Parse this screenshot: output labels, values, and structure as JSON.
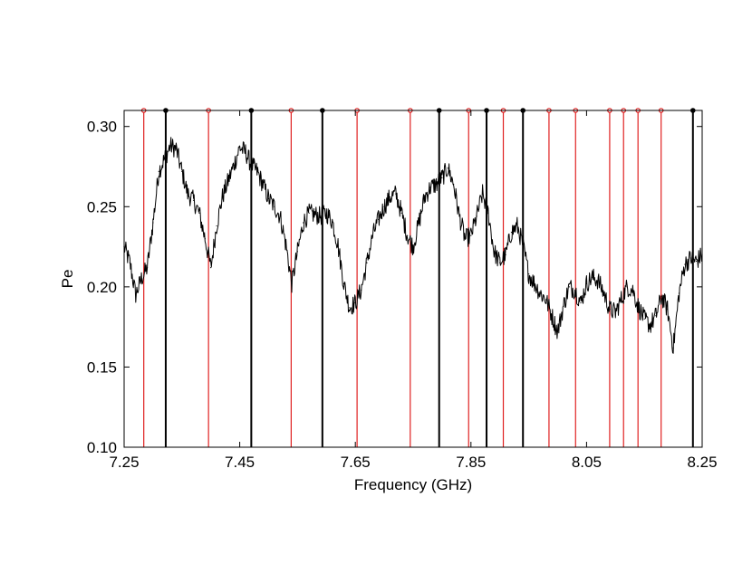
{
  "chart_data": {
    "type": "line",
    "title": "",
    "xlabel": "Frequency (GHz)",
    "ylabel": "Pe",
    "xlim": [
      7.25,
      8.25
    ],
    "ylim": [
      0.1,
      0.31
    ],
    "x_ticks": [
      "7.25",
      "7.45",
      "7.65",
      "7.85",
      "8.05",
      "8.25"
    ],
    "y_ticks": [
      "0.10",
      "0.15",
      "0.20",
      "0.25",
      "0.30"
    ],
    "grid": false,
    "series": [
      {
        "color": "#000000",
        "x": [
          7.25,
          7.26,
          7.27,
          7.28,
          7.29,
          7.3,
          7.31,
          7.32,
          7.33,
          7.34,
          7.35,
          7.36,
          7.37,
          7.38,
          7.39,
          7.4,
          7.41,
          7.42,
          7.43,
          7.44,
          7.45,
          7.46,
          7.47,
          7.48,
          7.49,
          7.5,
          7.51,
          7.52,
          7.53,
          7.54,
          7.55,
          7.56,
          7.57,
          7.58,
          7.59,
          7.6,
          7.61,
          7.62,
          7.63,
          7.64,
          7.65,
          7.66,
          7.67,
          7.68,
          7.69,
          7.7,
          7.71,
          7.72,
          7.73,
          7.74,
          7.75,
          7.76,
          7.77,
          7.78,
          7.79,
          7.8,
          7.81,
          7.82,
          7.83,
          7.84,
          7.85,
          7.86,
          7.87,
          7.88,
          7.89,
          7.9,
          7.91,
          7.92,
          7.93,
          7.94,
          7.95,
          7.96,
          7.97,
          7.98,
          7.99,
          8.0,
          8.01,
          8.02,
          8.03,
          8.04,
          8.05,
          8.06,
          8.07,
          8.08,
          8.09,
          8.1,
          8.11,
          8.12,
          8.13,
          8.14,
          8.15,
          8.16,
          8.17,
          8.18,
          8.19,
          8.2,
          8.21,
          8.22,
          8.23,
          8.24,
          8.25
        ],
        "values": [
          0.225,
          0.215,
          0.195,
          0.205,
          0.212,
          0.24,
          0.272,
          0.28,
          0.288,
          0.286,
          0.272,
          0.258,
          0.254,
          0.246,
          0.23,
          0.212,
          0.238,
          0.256,
          0.266,
          0.276,
          0.287,
          0.284,
          0.276,
          0.272,
          0.264,
          0.255,
          0.25,
          0.244,
          0.226,
          0.202,
          0.222,
          0.24,
          0.246,
          0.245,
          0.244,
          0.246,
          0.241,
          0.226,
          0.202,
          0.187,
          0.19,
          0.198,
          0.215,
          0.232,
          0.242,
          0.25,
          0.256,
          0.258,
          0.246,
          0.232,
          0.225,
          0.24,
          0.256,
          0.262,
          0.264,
          0.268,
          0.274,
          0.264,
          0.244,
          0.23,
          0.232,
          0.244,
          0.258,
          0.246,
          0.222,
          0.215,
          0.22,
          0.234,
          0.238,
          0.226,
          0.208,
          0.202,
          0.196,
          0.192,
          0.182,
          0.172,
          0.188,
          0.2,
          0.198,
          0.19,
          0.202,
          0.206,
          0.204,
          0.196,
          0.186,
          0.184,
          0.192,
          0.2,
          0.198,
          0.187,
          0.18,
          0.176,
          0.182,
          0.194,
          0.186,
          0.162,
          0.196,
          0.214,
          0.218,
          0.216,
          0.22
        ]
      }
    ],
    "markers": {
      "black": {
        "color": "#000000",
        "x": [
          7.322,
          7.47,
          7.593,
          7.795,
          7.877,
          7.94,
          8.234
        ]
      },
      "red": {
        "color": "#e02020",
        "x": [
          7.284,
          7.396,
          7.539,
          7.653,
          7.745,
          7.846,
          7.906,
          7.985,
          8.031,
          8.09,
          8.114,
          8.139,
          8.179
        ]
      }
    }
  }
}
